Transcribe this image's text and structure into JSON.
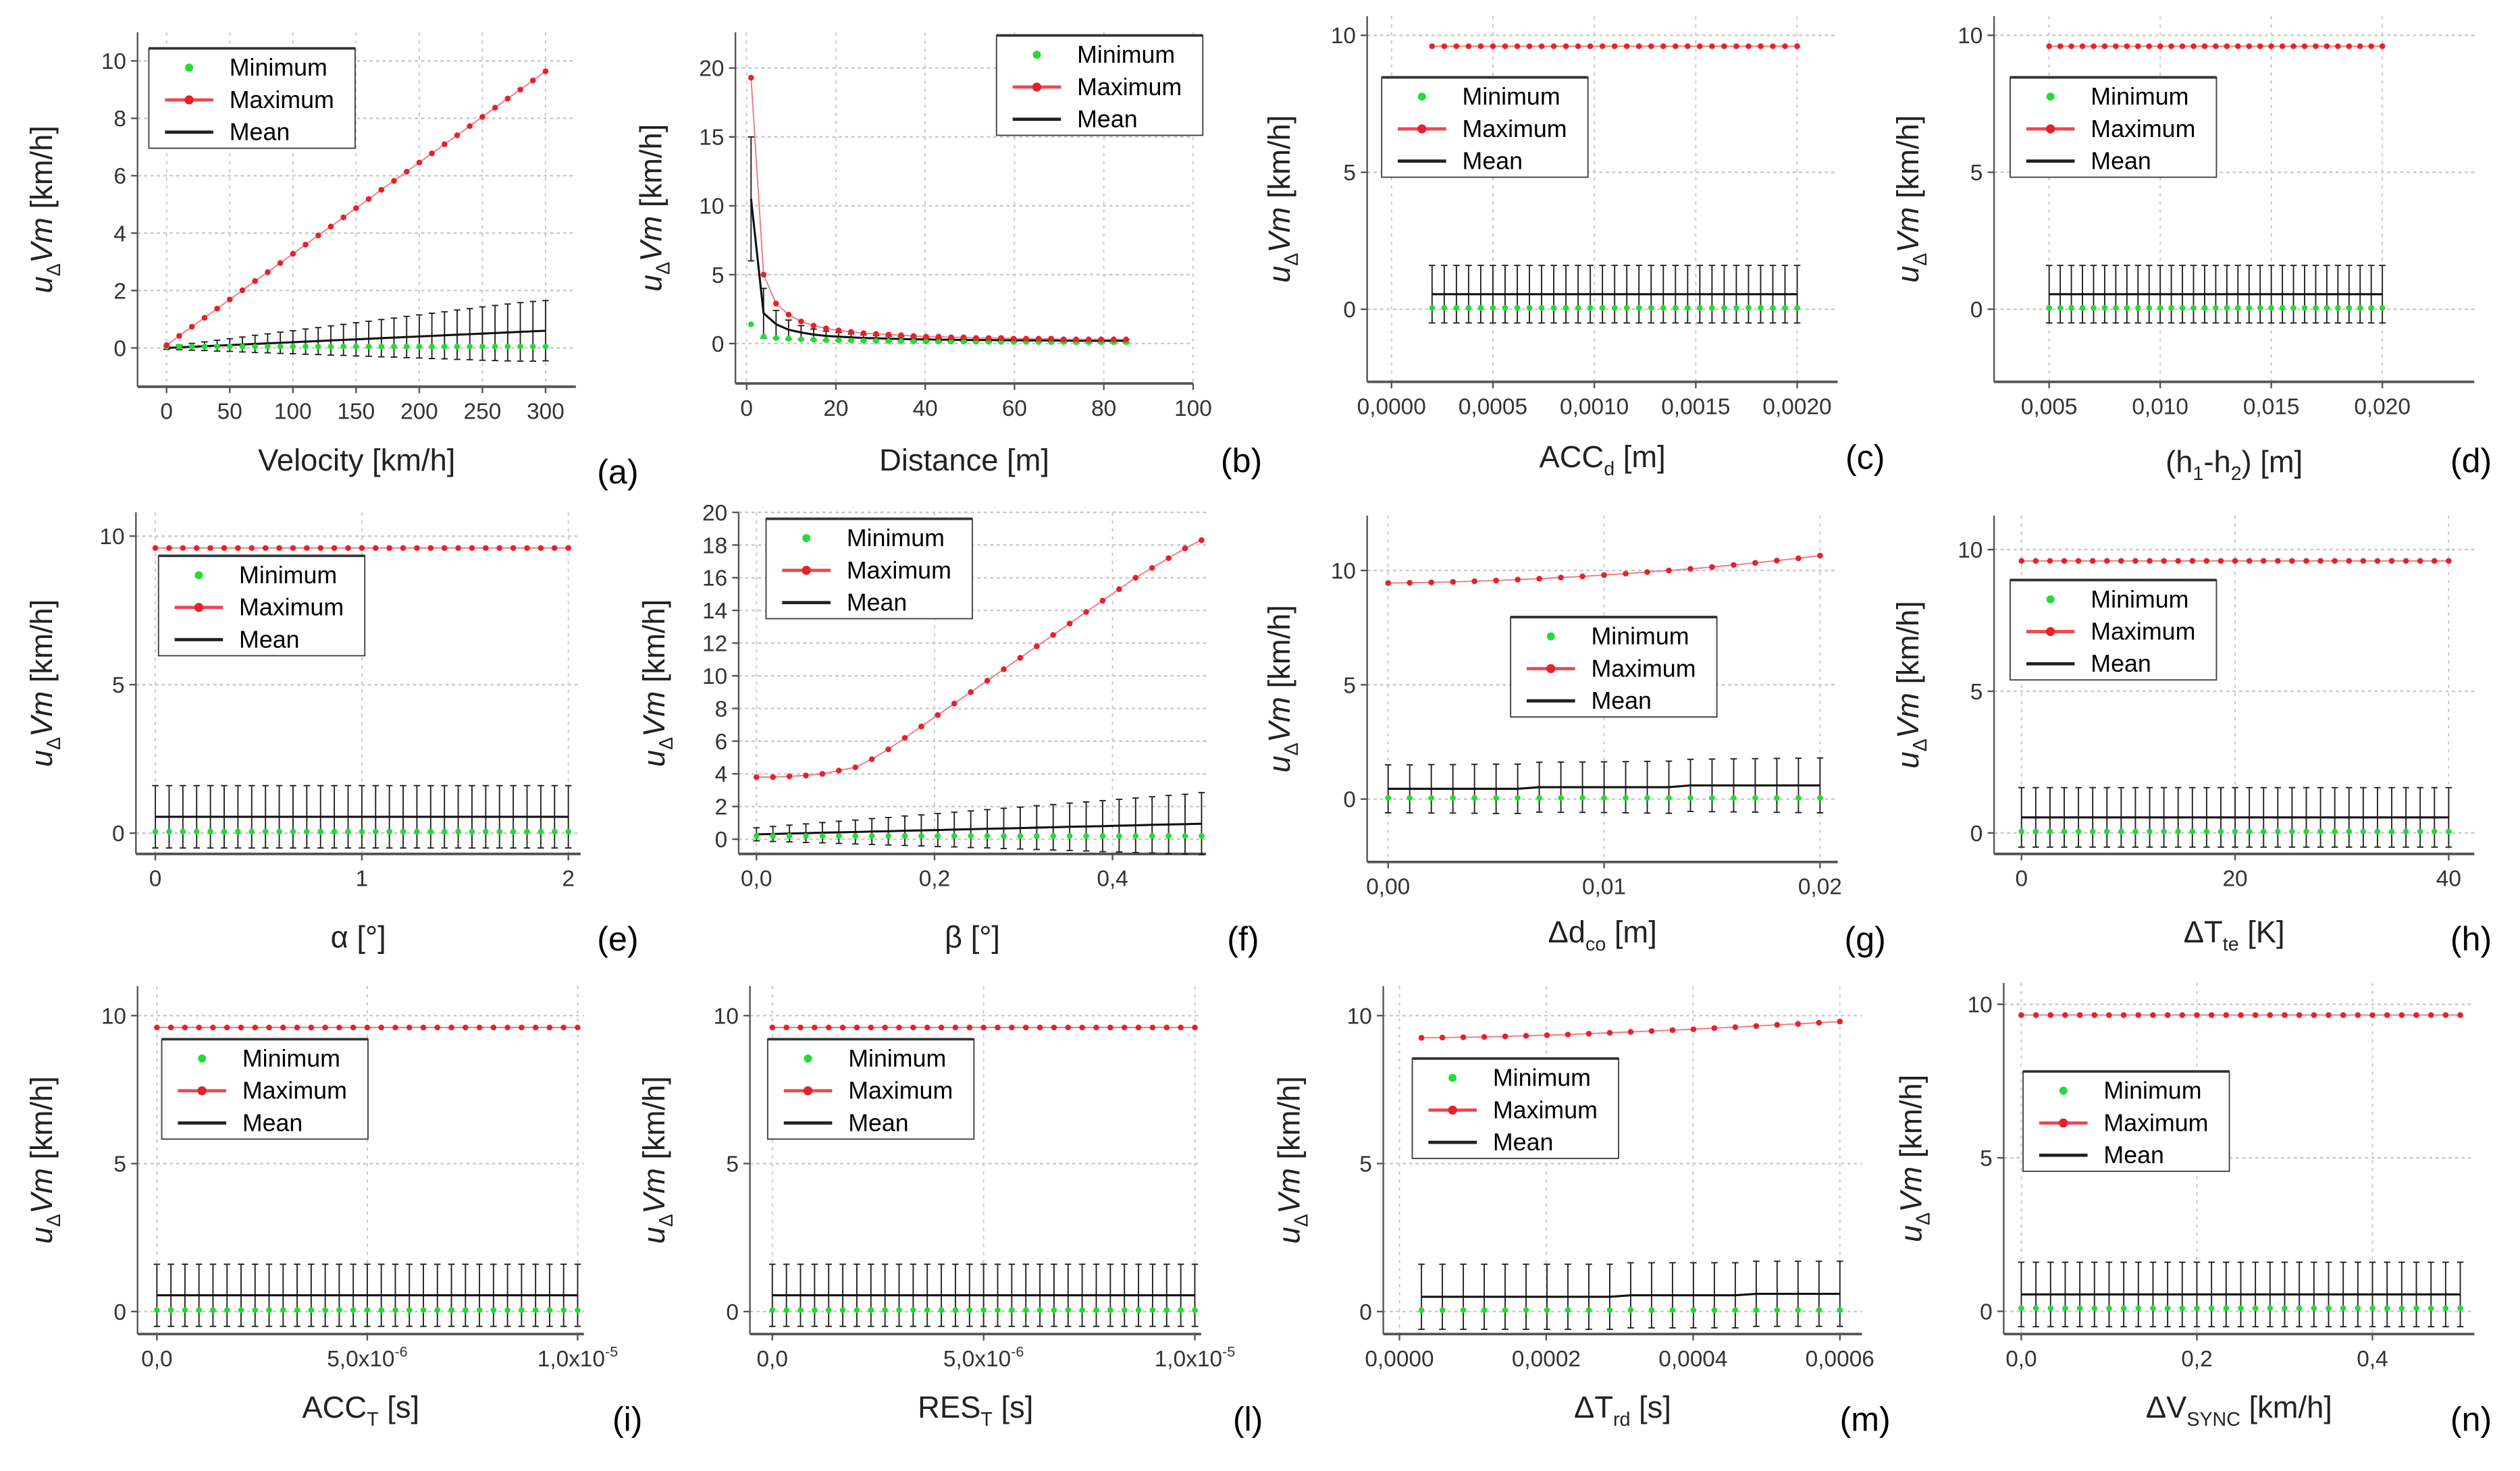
{
  "legend": {
    "min": "Minimum",
    "max": "Maximum",
    "mean": "Mean"
  },
  "colors": {
    "max": "#e8202a",
    "min": "#22dd33",
    "mean": "#111111",
    "grid": "#c8c8c8"
  },
  "ylabel": {
    "u": "u",
    "sub": "Δ",
    "v": "Vm",
    "unit": " [km/h]"
  },
  "chart_data": [
    {
      "type": "line",
      "panel": "(a)",
      "xlabel": [
        {
          "t": "Velocity [km/h]"
        }
      ],
      "xlim": [
        -23,
        324
      ],
      "ylim": [
        -1.35,
        11
      ],
      "xticks": [
        {
          "v": 0,
          "l": "0"
        },
        {
          "v": 50,
          "l": "50"
        },
        {
          "v": 100,
          "l": "100"
        },
        {
          "v": 150,
          "l": "150"
        },
        {
          "v": 200,
          "l": "200"
        },
        {
          "v": 250,
          "l": "250"
        },
        {
          "v": 300,
          "l": "300"
        }
      ],
      "yticks": [
        {
          "v": 0,
          "l": "0"
        },
        {
          "v": 2,
          "l": "2"
        },
        {
          "v": 4,
          "l": "4"
        },
        {
          "v": 6,
          "l": "6"
        },
        {
          "v": 8,
          "l": "8"
        },
        {
          "v": 10,
          "l": "10"
        }
      ],
      "x": {
        "start": 0,
        "end": 300,
        "n": 31
      },
      "max": [
        0.1,
        0.42,
        0.74,
        1.05,
        1.37,
        1.69,
        2.01,
        2.33,
        2.64,
        2.96,
        3.28,
        3.6,
        3.92,
        4.23,
        4.55,
        4.87,
        5.19,
        5.51,
        5.82,
        6.14,
        6.46,
        6.78,
        7.1,
        7.41,
        7.73,
        8.05,
        8.37,
        8.69,
        9.0,
        9.32,
        9.64
      ],
      "min": 0.05,
      "mean": [
        0,
        0.02,
        0.04,
        0.06,
        0.08,
        0.1,
        0.12,
        0.14,
        0.16,
        0.18,
        0.2,
        0.22,
        0.24,
        0.26,
        0.28,
        0.3,
        0.32,
        0.34,
        0.36,
        0.38,
        0.4,
        0.42,
        0.44,
        0.46,
        0.48,
        0.5,
        0.52,
        0.54,
        0.56,
        0.58,
        0.6
      ],
      "err": [
        0.05,
        0.08,
        0.12,
        0.15,
        0.19,
        0.22,
        0.26,
        0.3,
        0.33,
        0.37,
        0.4,
        0.44,
        0.47,
        0.51,
        0.54,
        0.58,
        0.61,
        0.65,
        0.68,
        0.72,
        0.75,
        0.79,
        0.82,
        0.86,
        0.89,
        0.93,
        0.96,
        0.99,
        1.02,
        1.04,
        1.05
      ]
    },
    {
      "type": "line",
      "panel": "(b)",
      "xlabel": [
        {
          "t": "Distance [m]"
        }
      ],
      "xlim": [
        -2.5,
        100
      ],
      "ylim": [
        -2.9,
        22.6
      ],
      "xticks": [
        {
          "v": 0,
          "l": "0"
        },
        {
          "v": 20,
          "l": "20"
        },
        {
          "v": 40,
          "l": "40"
        },
        {
          "v": 60,
          "l": "60"
        },
        {
          "v": 80,
          "l": "80"
        },
        {
          "v": 100,
          "l": "100"
        }
      ],
      "yticks": [
        {
          "v": 0,
          "l": "0"
        },
        {
          "v": 5,
          "l": "5"
        },
        {
          "v": 10,
          "l": "10"
        },
        {
          "v": 15,
          "l": "15"
        },
        {
          "v": 20,
          "l": "20"
        }
      ],
      "x": {
        "start": 1,
        "end": 85,
        "n": 31
      },
      "max": [
        19.3,
        5.0,
        2.9,
        2.1,
        1.6,
        1.3,
        1.1,
        0.95,
        0.85,
        0.75,
        0.7,
        0.65,
        0.6,
        0.55,
        0.5,
        0.5,
        0.45,
        0.45,
        0.4,
        0.4,
        0.4,
        0.35,
        0.35,
        0.35,
        0.35,
        0.3,
        0.3,
        0.3,
        0.3,
        0.3,
        0.3
      ],
      "min": [
        1.4,
        0.5,
        0.4,
        0.35,
        0.3,
        0.28,
        0.26,
        0.24,
        0.22,
        0.2,
        0.19,
        0.18,
        0.17,
        0.16,
        0.15,
        0.15,
        0.14,
        0.14,
        0.13,
        0.13,
        0.12,
        0.12,
        0.12,
        0.11,
        0.11,
        0.11,
        0.1,
        0.1,
        0.1,
        0.1,
        0.1
      ],
      "mean": [
        10.5,
        2.2,
        1.4,
        1.0,
        0.8,
        0.65,
        0.55,
        0.5,
        0.45,
        0.4,
        0.38,
        0.35,
        0.33,
        0.3,
        0.3,
        0.28,
        0.27,
        0.26,
        0.25,
        0.25,
        0.24,
        0.23,
        0.23,
        0.22,
        0.22,
        0.21,
        0.21,
        0.2,
        0.2,
        0.2,
        0.2
      ],
      "err": [
        4.5,
        1.8,
        1.0,
        0.7,
        0.5,
        0.4,
        0.35,
        0.3,
        0.25,
        0.22,
        0.2,
        0.18,
        0.17,
        0.16,
        0.15,
        0.15,
        0.14,
        0.14,
        0.13,
        0.13,
        0.12,
        0.12,
        0.12,
        0.11,
        0.11,
        0.11,
        0.1,
        0.1,
        0.1,
        0.1,
        0.1
      ]
    },
    {
      "type": "line",
      "panel": "(c)",
      "xlabel": [
        {
          "t": "ACC"
        },
        {
          "t": "d",
          "sub": true
        },
        {
          "t": " [m]"
        }
      ],
      "xlim": [
        -0.00012,
        0.0022
      ],
      "ylim": [
        -2.65,
        10.7
      ],
      "xticks": [
        {
          "v": 0,
          "l": "0,0000"
        },
        {
          "v": 0.0005,
          "l": "0,0005"
        },
        {
          "v": 0.001,
          "l": "0,0010"
        },
        {
          "v": 0.0015,
          "l": "0,0015"
        },
        {
          "v": 0.002,
          "l": "0,0020"
        }
      ],
      "yticks": [
        {
          "v": 0,
          "l": "0"
        },
        {
          "v": 5,
          "l": "5"
        },
        {
          "v": 10,
          "l": "10"
        }
      ],
      "x": {
        "start": 0.0002,
        "end": 0.002,
        "n": 31
      },
      "max": 9.6,
      "min": 0.05,
      "mean": 0.55,
      "err": 1.05
    },
    {
      "type": "line",
      "panel": "(d)",
      "xlabel": [
        {
          "t": "(h"
        },
        {
          "t": "1",
          "sub": true
        },
        {
          "t": "-h"
        },
        {
          "t": "2",
          "sub": true
        },
        {
          "t": ") [m]"
        }
      ],
      "xlim": [
        0.00252,
        0.02414
      ],
      "ylim": [
        -2.65,
        10.7
      ],
      "xticks": [
        {
          "v": 0.005,
          "l": "0,005"
        },
        {
          "v": 0.01,
          "l": "0,010"
        },
        {
          "v": 0.015,
          "l": "0,015"
        },
        {
          "v": 0.02,
          "l": "0,020"
        }
      ],
      "yticks": [
        {
          "v": 0,
          "l": "0"
        },
        {
          "v": 5,
          "l": "5"
        },
        {
          "v": 10,
          "l": "10"
        }
      ],
      "x": {
        "start": 0.005,
        "end": 0.02,
        "n": 31
      },
      "max": 9.6,
      "min": 0.05,
      "mean": 0.55,
      "err": 1.05
    },
    {
      "type": "line",
      "panel": "(e)",
      "xlabel": [
        {
          "t": "α [°]"
        }
      ],
      "xlim": [
        -0.094,
        2.06
      ],
      "ylim": [
        -0.7,
        10.8
      ],
      "xticks": [
        {
          "v": 0,
          "l": "0"
        },
        {
          "v": 1,
          "l": "1"
        },
        {
          "v": 2,
          "l": "2"
        }
      ],
      "yticks": [
        {
          "v": 0,
          "l": "0"
        },
        {
          "v": 5,
          "l": "5"
        },
        {
          "v": 10,
          "l": "10"
        }
      ],
      "x": {
        "start": 0,
        "end": 2,
        "n": 31
      },
      "max": 9.6,
      "min": 0.05,
      "mean": 0.55,
      "err": 1.05
    },
    {
      "type": "line",
      "panel": "(f)",
      "xlabel": [
        {
          "t": "β [°]"
        }
      ],
      "xlim": [
        -0.02,
        0.505
      ],
      "ylim": [
        -0.9,
        20
      ],
      "xticks": [
        {
          "v": 0,
          "l": "0,0"
        },
        {
          "v": 0.2,
          "l": "0,2"
        },
        {
          "v": 0.4,
          "l": "0,4"
        }
      ],
      "yticks": [
        {
          "v": 0,
          "l": "0"
        },
        {
          "v": 2,
          "l": "2"
        },
        {
          "v": 4,
          "l": "4"
        },
        {
          "v": 6,
          "l": "6"
        },
        {
          "v": 8,
          "l": "8"
        },
        {
          "v": 10,
          "l": "10"
        },
        {
          "v": 12,
          "l": "12"
        },
        {
          "v": 14,
          "l": "14"
        },
        {
          "v": 16,
          "l": "16"
        },
        {
          "v": 18,
          "l": "18"
        },
        {
          "v": 20,
          "l": "20"
        }
      ],
      "x": {
        "start": 0,
        "end": 0.5,
        "n": 28
      },
      "max": [
        3.8,
        3.8,
        3.85,
        3.9,
        4.0,
        4.2,
        4.4,
        4.9,
        5.5,
        6.2,
        6.9,
        7.6,
        8.3,
        9.0,
        9.7,
        10.4,
        11.1,
        11.8,
        12.5,
        13.2,
        13.9,
        14.6,
        15.3,
        16.0,
        16.6,
        17.2,
        17.8,
        18.3
      ],
      "min": 0.2,
      "mean": [
        0.3,
        0.32,
        0.35,
        0.37,
        0.4,
        0.42,
        0.44,
        0.47,
        0.49,
        0.52,
        0.54,
        0.56,
        0.59,
        0.61,
        0.64,
        0.66,
        0.68,
        0.71,
        0.73,
        0.76,
        0.78,
        0.8,
        0.83,
        0.85,
        0.88,
        0.9,
        0.92,
        0.95
      ],
      "err": [
        0.4,
        0.46,
        0.51,
        0.57,
        0.62,
        0.68,
        0.73,
        0.79,
        0.84,
        0.9,
        0.95,
        1.01,
        1.06,
        1.12,
        1.17,
        1.23,
        1.28,
        1.34,
        1.39,
        1.45,
        1.5,
        1.56,
        1.61,
        1.67,
        1.72,
        1.78,
        1.83,
        1.9
      ]
    },
    {
      "type": "line",
      "panel": "(g)",
      "xlabel": [
        {
          "t": "Δd"
        },
        {
          "t": "co",
          "sub": true
        },
        {
          "t": " [m]"
        }
      ],
      "xlim": [
        -0.00097,
        0.02082
      ],
      "ylim": [
        -2.75,
        12.4
      ],
      "xticks": [
        {
          "v": 0,
          "l": "0,00"
        },
        {
          "v": 0.01,
          "l": "0,01"
        },
        {
          "v": 0.02,
          "l": "0,02"
        }
      ],
      "yticks": [
        {
          "v": 0,
          "l": "0"
        },
        {
          "v": 5,
          "l": "5"
        },
        {
          "v": 10,
          "l": "10"
        }
      ],
      "x": {
        "start": 0,
        "end": 0.02,
        "n": 21
      },
      "max": [
        9.45,
        9.46,
        9.48,
        9.5,
        9.53,
        9.56,
        9.6,
        9.64,
        9.69,
        9.74,
        9.8,
        9.86,
        9.93,
        10.0,
        10.07,
        10.15,
        10.24,
        10.33,
        10.43,
        10.53,
        10.65
      ],
      "min": 0.05,
      "mean": [
        0.45,
        0.45,
        0.45,
        0.45,
        0.45,
        0.45,
        0.45,
        0.52,
        0.52,
        0.52,
        0.52,
        0.52,
        0.52,
        0.52,
        0.6,
        0.6,
        0.6,
        0.6,
        0.6,
        0.6,
        0.6
      ],
      "err": [
        1.05,
        1.05,
        1.06,
        1.06,
        1.07,
        1.08,
        1.08,
        1.09,
        1.1,
        1.1,
        1.11,
        1.12,
        1.13,
        1.14,
        1.14,
        1.15,
        1.16,
        1.17,
        1.18,
        1.19,
        1.2
      ]
    },
    {
      "type": "line",
      "panel": "(h)",
      "xlabel": [
        {
          "t": "ΔT"
        },
        {
          "t": "te",
          "sub": true
        },
        {
          "t": " [K]"
        }
      ],
      "xlim": [
        -2.57,
        42.4
      ],
      "ylim": [
        -0.74,
        11.2
      ],
      "xticks": [
        {
          "v": 0,
          "l": "0"
        },
        {
          "v": 20,
          "l": "20"
        },
        {
          "v": 40,
          "l": "40"
        }
      ],
      "yticks": [
        {
          "v": 0,
          "l": "0"
        },
        {
          "v": 5,
          "l": "5"
        },
        {
          "v": 10,
          "l": "10"
        }
      ],
      "x": {
        "start": 0,
        "end": 40,
        "n": 31
      },
      "max": 9.6,
      "min": 0.05,
      "mean": 0.55,
      "err": 1.05
    },
    {
      "type": "line",
      "panel": "(i)",
      "xlabel": [
        {
          "t": "ACC"
        },
        {
          "t": "T",
          "sub": true
        },
        {
          "t": " [s]"
        }
      ],
      "xlim": [
        -4.6e-07,
        1.015e-05
      ],
      "ylim": [
        -0.76,
        11
      ],
      "xticks": [
        {
          "v": 0,
          "l": "0,0"
        },
        {
          "v": 5e-06,
          "l": "5,0x10",
          "sup": "-6"
        },
        {
          "v": 1e-05,
          "l": "1,0x10",
          "sup": "-5"
        }
      ],
      "yticks": [
        {
          "v": 0,
          "l": "0"
        },
        {
          "v": 5,
          "l": "5"
        },
        {
          "v": 10,
          "l": "10"
        }
      ],
      "x": {
        "start": 0,
        "end": 1e-05,
        "n": 31
      },
      "max": 9.6,
      "min": 0.05,
      "mean": 0.55,
      "err": 1.05
    },
    {
      "type": "line",
      "panel": "(l)",
      "xlabel": [
        {
          "t": "RES"
        },
        {
          "t": "T",
          "sub": true
        },
        {
          "t": " [s]"
        }
      ],
      "xlim": [
        -5.3e-07,
        1.015e-05
      ],
      "ylim": [
        -0.76,
        11
      ],
      "xticks": [
        {
          "v": 0,
          "l": "0,0"
        },
        {
          "v": 5e-06,
          "l": "5,0x10",
          "sup": "-6"
        },
        {
          "v": 1e-05,
          "l": "1,0x10",
          "sup": "-5"
        }
      ],
      "yticks": [
        {
          "v": 0,
          "l": "0"
        },
        {
          "v": 5,
          "l": "5"
        },
        {
          "v": 10,
          "l": "10"
        }
      ],
      "x": {
        "start": 0,
        "end": 1e-05,
        "n": 31
      },
      "max": 9.6,
      "min": 0.05,
      "mean": 0.55,
      "err": 1.05
    },
    {
      "type": "line",
      "panel": "(m)",
      "xlabel": [
        {
          "t": "ΔT"
        },
        {
          "t": "rd",
          "sub": true
        },
        {
          "t": " [s]"
        }
      ],
      "xlim": [
        -2.2e-05,
        0.00063
      ],
      "ylim": [
        -0.76,
        11
      ],
      "xticks": [
        {
          "v": 0,
          "l": "0,0000"
        },
        {
          "v": 0.0002,
          "l": "0,0002"
        },
        {
          "v": 0.0004,
          "l": "0,0004"
        },
        {
          "v": 0.0006,
          "l": "0,0006"
        }
      ],
      "yticks": [
        {
          "v": 0,
          "l": "0"
        },
        {
          "v": 5,
          "l": "5"
        },
        {
          "v": 10,
          "l": "10"
        }
      ],
      "x": {
        "start": 3e-05,
        "end": 0.0006,
        "n": 21
      },
      "max": [
        9.25,
        9.26,
        9.27,
        9.28,
        9.3,
        9.32,
        9.34,
        9.36,
        9.39,
        9.42,
        9.45,
        9.48,
        9.51,
        9.54,
        9.58,
        9.61,
        9.65,
        9.69,
        9.72,
        9.76,
        9.8
      ],
      "min": 0.05,
      "mean": [
        0.5,
        0.5,
        0.5,
        0.5,
        0.5,
        0.5,
        0.5,
        0.5,
        0.5,
        0.5,
        0.55,
        0.55,
        0.55,
        0.55,
        0.55,
        0.55,
        0.6,
        0.6,
        0.6,
        0.6,
        0.6
      ],
      "err": 1.1
    },
    {
      "type": "line",
      "panel": "(n)",
      "xlabel": [
        {
          "t": "ΔV"
        },
        {
          "t": "SYNC",
          "sub": true
        },
        {
          "t": " [km/h]"
        }
      ],
      "xlim": [
        -0.02,
        0.516
      ],
      "ylim": [
        -0.74,
        10.7
      ],
      "xticks": [
        {
          "v": 0,
          "l": "0,0"
        },
        {
          "v": 0.2,
          "l": "0,2"
        },
        {
          "v": 0.4,
          "l": "0,4"
        }
      ],
      "yticks": [
        {
          "v": 0,
          "l": "0"
        },
        {
          "v": 5,
          "l": "5"
        },
        {
          "v": 10,
          "l": "10"
        }
      ],
      "x": {
        "start": 0,
        "end": 0.5,
        "n": 31
      },
      "max": 9.65,
      "min": 0.1,
      "mean": 0.55,
      "err": 1.05
    }
  ]
}
